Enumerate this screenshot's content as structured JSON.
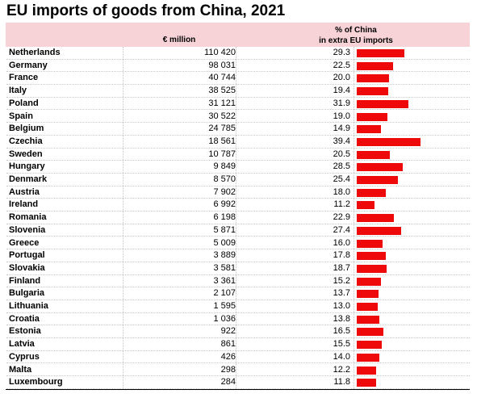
{
  "chart_data": {
    "type": "table",
    "title": "EU imports of goods from China, 2021",
    "columns": [
      "€ million",
      "% of China in extra EU imports"
    ],
    "header_col2_lines": [
      "% of China",
      "in extra EU imports"
    ],
    "bar_color": "#ee0a0a",
    "header_color": "#f7d3d8",
    "share_max": 40,
    "rows": [
      {
        "country": "Netherlands",
        "million": "110 420",
        "share": "29.3"
      },
      {
        "country": "Germany",
        "million": "98 031",
        "share": "22.5"
      },
      {
        "country": "France",
        "million": "40 744",
        "share": "20.0"
      },
      {
        "country": "Italy",
        "million": "38 525",
        "share": "19.4"
      },
      {
        "country": "Poland",
        "million": "31 121",
        "share": "31.9"
      },
      {
        "country": "Spain",
        "million": "30 522",
        "share": "19.0"
      },
      {
        "country": "Belgium",
        "million": "24 785",
        "share": "14.9"
      },
      {
        "country": "Czechia",
        "million": "18 561",
        "share": "39.4"
      },
      {
        "country": "Sweden",
        "million": "10 787",
        "share": "20.5"
      },
      {
        "country": "Hungary",
        "million": "9 849",
        "share": "28.5"
      },
      {
        "country": "Denmark",
        "million": "8 570",
        "share": "25.4"
      },
      {
        "country": "Austria",
        "million": "7 902",
        "share": "18.0"
      },
      {
        "country": "Ireland",
        "million": "6 992",
        "share": "11.2"
      },
      {
        "country": "Romania",
        "million": "6 198",
        "share": "22.9"
      },
      {
        "country": "Slovenia",
        "million": "5 871",
        "share": "27.4"
      },
      {
        "country": "Greece",
        "million": "5 009",
        "share": "16.0"
      },
      {
        "country": "Portugal",
        "million": "3 889",
        "share": "17.8"
      },
      {
        "country": "Slovakia",
        "million": "3 581",
        "share": "18.7"
      },
      {
        "country": "Finland",
        "million": "3 361",
        "share": "15.2"
      },
      {
        "country": "Bulgaria",
        "million": "2 107",
        "share": "13.7"
      },
      {
        "country": "Lithuania",
        "million": "1 595",
        "share": "13.0"
      },
      {
        "country": "Croatia",
        "million": "1 036",
        "share": "13.8"
      },
      {
        "country": "Estonia",
        "million": "922",
        "share": "16.5"
      },
      {
        "country": "Latvia",
        "million": "861",
        "share": "15.5"
      },
      {
        "country": "Cyprus",
        "million": "426",
        "share": "14.0"
      },
      {
        "country": "Malta",
        "million": "298",
        "share": "12.2"
      },
      {
        "country": "Luxembourg",
        "million": "284",
        "share": "11.8"
      }
    ]
  }
}
